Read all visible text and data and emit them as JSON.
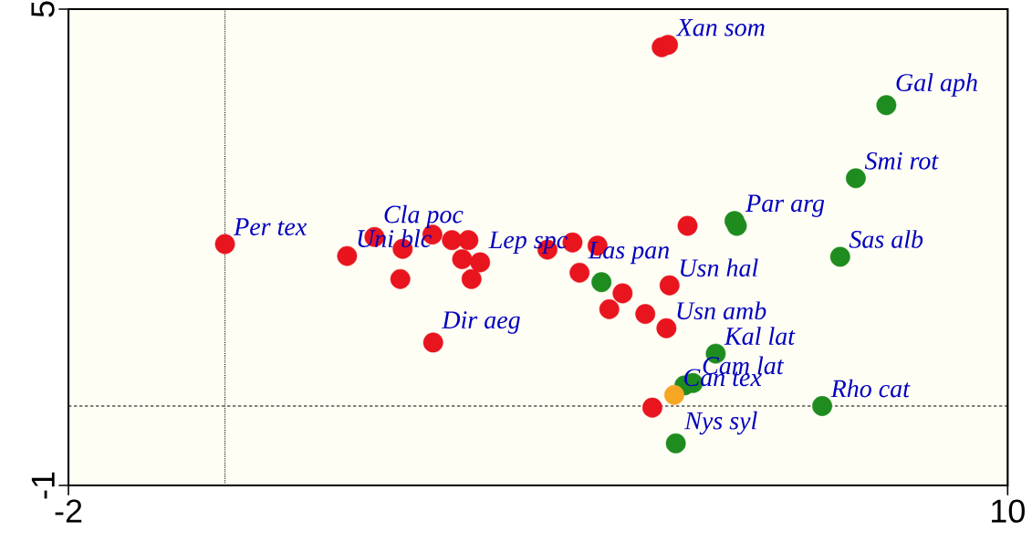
{
  "chart_data": {
    "type": "scatter",
    "series": [
      {
        "color": "#e8141e",
        "x": [
          0.0,
          1.56,
          1.91,
          2.27,
          2.24,
          2.65,
          2.9,
          3.11,
          3.03,
          3.26,
          3.15,
          2.66,
          4.12,
          4.44,
          4.76,
          4.53,
          4.91,
          5.08,
          5.37,
          5.64,
          5.68,
          5.91,
          5.58,
          5.66,
          5.46
        ],
        "values": [
          2.04,
          1.89,
          2.13,
          1.98,
          1.6,
          2.16,
          2.09,
          2.09,
          1.85,
          1.81,
          1.6,
          0.8,
          1.97,
          2.06,
          2.02,
          1.68,
          1.22,
          1.42,
          1.16,
          0.98,
          1.52,
          2.27,
          4.52,
          4.55,
          -0.02
        ]
      },
      {
        "color": "#1e8c1e",
        "x": [
          8.45,
          8.06,
          7.86,
          7.63,
          6.51,
          6.54,
          6.27,
          5.87,
          5.98,
          5.76,
          4.81
        ],
        "values": [
          3.79,
          2.87,
          1.88,
          0.0,
          2.33,
          2.27,
          0.66,
          0.26,
          0.29,
          -0.47,
          1.56
        ]
      },
      {
        "color": "#f5a623",
        "x": [
          5.74
        ],
        "values": [
          0.14
        ]
      }
    ],
    "annotations": [
      {
        "text": "Per tex",
        "x": 0.0,
        "y": 2.04
      },
      {
        "text": "Uni blc",
        "x": 1.56,
        "y": 1.89
      },
      {
        "text": "Cla poc",
        "x": 1.91,
        "y": 2.13
      },
      {
        "text": "Dir aeg",
        "x": 2.66,
        "y": 0.8
      },
      {
        "text": "Lep spc",
        "x": 3.26,
        "y": 1.81
      },
      {
        "text": "Las pan",
        "x": 4.53,
        "y": 1.68
      },
      {
        "text": "Usn hal",
        "x": 5.68,
        "y": 1.52
      },
      {
        "text": "Usn amb",
        "x": 5.64,
        "y": 0.98
      },
      {
        "text": "Kal lat",
        "x": 6.27,
        "y": 0.66
      },
      {
        "text": "Cam lat",
        "x": 5.98,
        "y": 0.29
      },
      {
        "text": "Can tex",
        "x": 5.74,
        "y": 0.14
      },
      {
        "text": "Nys syl",
        "x": 5.76,
        "y": -0.47
      },
      {
        "text": "Rho cat",
        "x": 7.63,
        "y": 0.0
      },
      {
        "text": "Sas alb",
        "x": 7.86,
        "y": 1.88
      },
      {
        "text": "Smi rot",
        "x": 8.06,
        "y": 2.87
      },
      {
        "text": "Gal aph",
        "x": 8.45,
        "y": 3.79
      },
      {
        "text": "Par arg",
        "x": 6.54,
        "y": 2.27
      },
      {
        "text": "Xan som",
        "x": 5.66,
        "y": 4.55
      }
    ],
    "ref_lines": [
      {
        "axis": "x",
        "value": 0,
        "line_style": "dotted"
      },
      {
        "axis": "y",
        "value": 0,
        "line_style": "dashed"
      }
    ],
    "xlim": [
      -2,
      10
    ],
    "ylim": [
      -1,
      5
    ],
    "xticks": [
      -2,
      10
    ],
    "yticks": [
      -1,
      5
    ]
  }
}
